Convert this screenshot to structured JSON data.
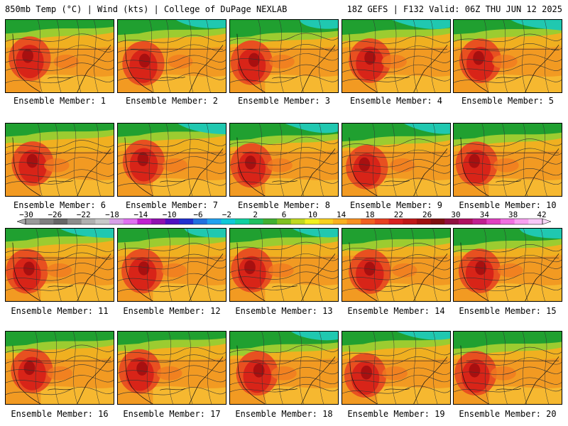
{
  "header": {
    "left": "850mb Temp (°C) | Wind (kts) | College of DuPage NEXLAB",
    "right": "18Z GEFS | F132 Valid: 06Z THU JUN 12 2025"
  },
  "member_label_prefix": "Ensemble Member:",
  "members": [
    1,
    2,
    3,
    4,
    5,
    6,
    7,
    8,
    9,
    10,
    11,
    12,
    13,
    14,
    15,
    16,
    17,
    18,
    19,
    20
  ],
  "colorbar": {
    "tick_labels": [
      "−30",
      "−26",
      "−22",
      "−18",
      "−14",
      "−10",
      "−6",
      "−2",
      "2",
      "6",
      "10",
      "14",
      "18",
      "22",
      "26",
      "30",
      "34",
      "38",
      "42"
    ],
    "colors": [
      "#9a9a9a",
      "#7f7f7f",
      "#666666",
      "#8c8c8c",
      "#b0b0b0",
      "#c9c9c9",
      "#d8a0e8",
      "#e070f0",
      "#c020d0",
      "#9010b0",
      "#5010c0",
      "#2030d0",
      "#2070e0",
      "#20a0f0",
      "#10c8d8",
      "#10d0a0",
      "#20c060",
      "#40b030",
      "#80c020",
      "#c0d820",
      "#f0f020",
      "#f8d020",
      "#f8b020",
      "#f89020",
      "#f06020",
      "#e84020",
      "#d82020",
      "#c01818",
      "#a01010",
      "#801010",
      "#901040",
      "#b01060",
      "#c02090",
      "#e040c0",
      "#f070e0",
      "#f8a0f0",
      "#f8c8f8"
    ]
  }
}
